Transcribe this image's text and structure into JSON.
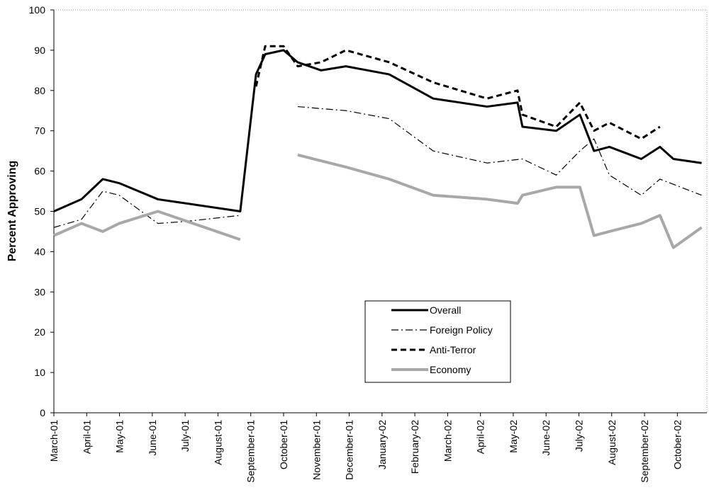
{
  "chart_data": {
    "type": "line",
    "y_label": "Percent Approving",
    "ylim": [
      0,
      100
    ],
    "yticks": [
      0,
      10,
      20,
      30,
      40,
      50,
      60,
      70,
      80,
      90,
      100
    ],
    "xlim": [
      0,
      19.9
    ],
    "xticks": [
      {
        "value": 0,
        "label": "March-01"
      },
      {
        "value": 1,
        "label": "April-01"
      },
      {
        "value": 2,
        "label": "May-01"
      },
      {
        "value": 3,
        "label": "June-01"
      },
      {
        "value": 4,
        "label": "July-01"
      },
      {
        "value": 5,
        "label": "August-01"
      },
      {
        "value": 6,
        "label": "September-01"
      },
      {
        "value": 7,
        "label": "October-01"
      },
      {
        "value": 8,
        "label": "November-01"
      },
      {
        "value": 9,
        "label": "December-01"
      },
      {
        "value": 10,
        "label": "January-02"
      },
      {
        "value": 11,
        "label": "February-02"
      },
      {
        "value": 12,
        "label": "March-02"
      },
      {
        "value": 13,
        "label": "April-02"
      },
      {
        "value": 14,
        "label": "May-02"
      },
      {
        "value": 15,
        "label": "June-02"
      },
      {
        "value": 16,
        "label": "July-02"
      },
      {
        "value": 17,
        "label": "August-02"
      },
      {
        "value": 18,
        "label": "September-02"
      },
      {
        "value": 19,
        "label": "October-02"
      }
    ],
    "grid": false,
    "series": [
      {
        "name": "Overall",
        "color": "#000000",
        "width": 3,
        "dash": "none",
        "x": [
          0,
          0.84,
          1.49,
          1.99,
          3.17,
          5.68,
          6.16,
          6.44,
          7.0,
          7.43,
          8.14,
          8.9,
          10.22,
          11.56,
          13.2,
          14.13,
          14.28,
          15.31,
          16.03,
          16.46,
          16.93,
          17.9,
          18.47,
          18.88,
          19.74
        ],
        "values": [
          50,
          53,
          58,
          57,
          53,
          50,
          84,
          89,
          90,
          87,
          85,
          86,
          84,
          78,
          76,
          77,
          71,
          70,
          74,
          65,
          66,
          63,
          66,
          63,
          62
        ]
      },
      {
        "name": "Foreign Policy",
        "color": "#000000",
        "width": 1.2,
        "dash": "10,4,2,4",
        "x": [
          0,
          0.84,
          1.49,
          1.99,
          3.17,
          4.02,
          5.68,
          7.0,
          7.43,
          8.14,
          8.9,
          10.22,
          11.56,
          13.2,
          14.28,
          15.31,
          16.03,
          16.46,
          16.93,
          17.9,
          18.47,
          19.74
        ],
        "values": [
          46,
          48,
          55,
          54,
          47,
          47.5,
          49,
          null,
          76,
          75.5,
          75,
          73,
          65,
          62,
          63,
          59,
          65,
          68,
          59,
          54,
          58,
          54
        ]
      },
      {
        "name": "Anti-Terror",
        "color": "#000000",
        "width": 3,
        "dash": "8,5",
        "x": [
          6.16,
          6.44,
          7.0,
          7.43,
          8.14,
          8.9,
          10.22,
          11.56,
          13.2,
          14.13,
          14.28,
          15.31,
          16.03,
          16.46,
          16.93,
          17.9,
          18.47
        ],
        "values": [
          81,
          91,
          91,
          86,
          87,
          90,
          87,
          82,
          78,
          80,
          74,
          71,
          77,
          70,
          72,
          68,
          71
        ]
      },
      {
        "name": "Economy",
        "color": "#a8a8a8",
        "width": 4,
        "dash": "none",
        "x": [
          0,
          0.84,
          1.49,
          1.99,
          3.17,
          5.68,
          7.0,
          7.43,
          8.9,
          10.22,
          11.56,
          13.2,
          14.13,
          14.28,
          15.31,
          16.03,
          16.46,
          16.93,
          17.9,
          18.47,
          18.88,
          19.74
        ],
        "values": [
          44,
          47,
          45,
          47,
          50,
          43,
          null,
          64,
          61,
          58,
          54,
          53,
          52,
          54,
          56,
          56,
          44,
          45,
          47,
          49,
          41,
          46
        ]
      }
    ]
  }
}
